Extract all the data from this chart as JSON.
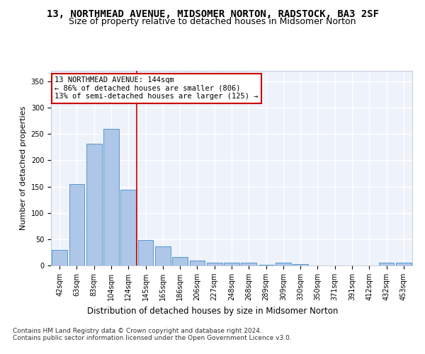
{
  "title": "13, NORTHMEAD AVENUE, MIDSOMER NORTON, RADSTOCK, BA3 2SF",
  "subtitle": "Size of property relative to detached houses in Midsomer Norton",
  "xlabel": "Distribution of detached houses by size in Midsomer Norton",
  "ylabel": "Number of detached properties",
  "categories": [
    "42sqm",
    "63sqm",
    "83sqm",
    "104sqm",
    "124sqm",
    "145sqm",
    "165sqm",
    "186sqm",
    "206sqm",
    "227sqm",
    "248sqm",
    "268sqm",
    "289sqm",
    "309sqm",
    "330sqm",
    "350sqm",
    "371sqm",
    "391sqm",
    "412sqm",
    "432sqm",
    "453sqm"
  ],
  "values": [
    29,
    155,
    232,
    260,
    144,
    49,
    36,
    16,
    10,
    6,
    5,
    5,
    2,
    5,
    3,
    0,
    0,
    0,
    0,
    5,
    5
  ],
  "bar_color": "#aec6e8",
  "bar_edge_color": "#5599cc",
  "annotation_text": "13 NORTHMEAD AVENUE: 144sqm\n← 86% of detached houses are smaller (806)\n13% of semi-detached houses are larger (125) →",
  "annotation_box_color": "#ffffff",
  "annotation_border_color": "#cc0000",
  "vline_x": 4.5,
  "ylim": [
    0,
    370
  ],
  "yticks": [
    0,
    50,
    100,
    150,
    200,
    250,
    300,
    350
  ],
  "footer_text": "Contains HM Land Registry data © Crown copyright and database right 2024.\nContains public sector information licensed under the Open Government Licence v3.0.",
  "bg_color": "#eef2fa",
  "grid_color": "#ffffff",
  "title_fontsize": 10,
  "subtitle_fontsize": 9,
  "xlabel_fontsize": 8.5,
  "ylabel_fontsize": 8,
  "tick_fontsize": 7,
  "annotation_fontsize": 7.5,
  "footer_fontsize": 6.5
}
